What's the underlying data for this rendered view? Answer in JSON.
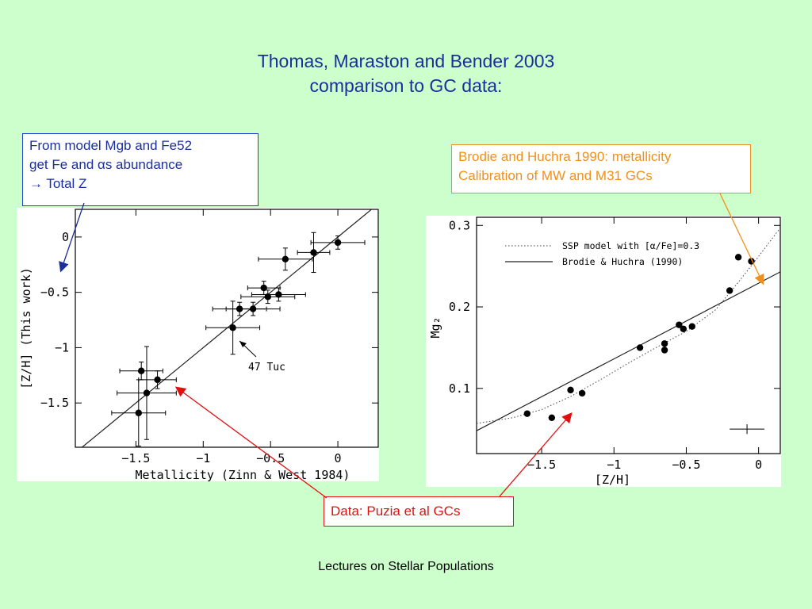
{
  "title_line1": "Thomas, Maraston and Bender 2003",
  "title_line2": "comparison to GC data:",
  "callouts": {
    "blue_line1": "From model Mgb and Fe52",
    "blue_line2": "get Fe and  αs abundance",
    "blue_line3": "→ Total Z",
    "orange_line1": "Brodie and Huchra 1990: metallicity",
    "orange_line2": "Calibration of MW and M31 GCs",
    "red": "Data: Puzia et al GCs"
  },
  "footer": "Lectures on Stellar Populations",
  "colors": {
    "background": "#ccffcc",
    "blue": "#1a2f9c",
    "orange": "#f0901a",
    "red": "#e01010"
  },
  "chart_data": [
    {
      "type": "scatter",
      "xlabel": "Metallicity (Zinn & West 1984)",
      "ylabel": "[Z/H] (This work)",
      "xlim": [
        -1.95,
        0.3
      ],
      "ylim": [
        -1.9,
        0.25
      ],
      "xticks": [
        -1.5,
        -1,
        -0.5,
        0
      ],
      "xtick_labels": [
        "−1.5",
        "−1",
        "−0.5",
        "0"
      ],
      "yticks": [
        -1.5,
        -1,
        -0.5,
        0
      ],
      "ytick_labels": [
        "−1.5",
        "−1",
        "−0.5",
        "0"
      ],
      "one_to_one_line": true,
      "annotation": "47 Tuc",
      "points": [
        {
          "x": -1.46,
          "y": -1.21,
          "xerr": 0.16,
          "yerr": 0.08
        },
        {
          "x": -1.42,
          "y": -1.41,
          "xerr": 0.22,
          "yerr": 0.42
        },
        {
          "x": -1.34,
          "y": -1.29,
          "xerr": 0.14,
          "yerr": 0.08
        },
        {
          "x": -1.48,
          "y": -1.59,
          "xerr": 0.2,
          "yerr": 0.3
        },
        {
          "x": -0.78,
          "y": -0.82,
          "xerr": 0.2,
          "yerr": 0.24
        },
        {
          "x": -0.73,
          "y": -0.65,
          "xerr": 0.2,
          "yerr": 0.06
        },
        {
          "x": -0.63,
          "y": -0.65,
          "xerr": 0.2,
          "yerr": 0.06
        },
        {
          "x": -0.55,
          "y": -0.46,
          "xerr": 0.12,
          "yerr": 0.06
        },
        {
          "x": -0.52,
          "y": -0.54,
          "xerr": 0.2,
          "yerr": 0.06
        },
        {
          "x": -0.44,
          "y": -0.52,
          "xerr": 0.2,
          "yerr": 0.06
        },
        {
          "x": -0.39,
          "y": -0.2,
          "xerr": 0.2,
          "yerr": 0.1
        },
        {
          "x": -0.18,
          "y": -0.14,
          "xerr": 0.12,
          "yerr": 0.18
        },
        {
          "x": 0.0,
          "y": -0.05,
          "xerr": 0.2,
          "yerr": 0.06
        }
      ]
    },
    {
      "type": "scatter",
      "xlabel": "[Z/H]",
      "ylabel": "Mg₂",
      "xlim": [
        -1.95,
        0.15
      ],
      "ylim": [
        0.02,
        0.31
      ],
      "xticks": [
        -1.5,
        -1,
        -0.5,
        0
      ],
      "xtick_labels": [
        "−1.5",
        "−1",
        "−0.5",
        "0"
      ],
      "yticks": [
        0.1,
        0.2,
        0.3
      ],
      "ytick_labels": [
        "0.1",
        "0.2",
        "0.3"
      ],
      "legend": {
        "placement": "top-left",
        "entries": [
          "SSP model with [α/Fe]=0.3",
          "Brodie & Huchra (1990)"
        ]
      },
      "points": [
        {
          "x": -1.6,
          "y": 0.069
        },
        {
          "x": -1.43,
          "y": 0.064
        },
        {
          "x": -1.3,
          "y": 0.098
        },
        {
          "x": -1.22,
          "y": 0.094
        },
        {
          "x": -0.82,
          "y": 0.15
        },
        {
          "x": -0.65,
          "y": 0.155
        },
        {
          "x": -0.65,
          "y": 0.147
        },
        {
          "x": -0.55,
          "y": 0.178
        },
        {
          "x": -0.52,
          "y": 0.173
        },
        {
          "x": -0.46,
          "y": 0.176
        },
        {
          "x": -0.2,
          "y": 0.22
        },
        {
          "x": -0.14,
          "y": 0.261
        },
        {
          "x": -0.05,
          "y": 0.256
        }
      ],
      "ssp_model": {
        "x": [
          -1.95,
          -1.7,
          -1.5,
          -1.3,
          -1.1,
          -0.9,
          -0.7,
          -0.5,
          -0.3,
          -0.15,
          0.0,
          0.15
        ],
        "y": [
          0.057,
          0.064,
          0.074,
          0.09,
          0.11,
          0.131,
          0.151,
          0.17,
          0.196,
          0.228,
          0.262,
          0.297
        ]
      },
      "brodie_huchra": {
        "x": [
          -1.95,
          0.15
        ],
        "y": [
          0.048,
          0.243
        ]
      },
      "sample_errorbar": {
        "x": -0.08,
        "y": 0.05,
        "xerr": 0.12,
        "yerr": 0.006
      }
    }
  ]
}
